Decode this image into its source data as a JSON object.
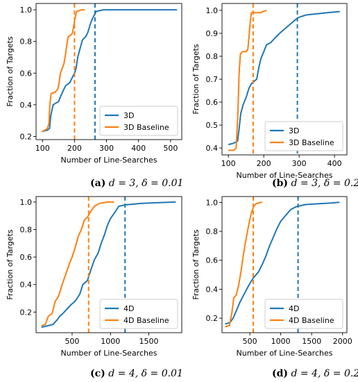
{
  "chart_data": [
    {
      "type": "line",
      "caption_letter": "(a)",
      "caption_rest": "d = 3, δ = 0.01",
      "xlabel": "Number of Line-Searches",
      "ylabel": "Fraction of Targets",
      "xlim": [
        80,
        535
      ],
      "ylim": [
        0.18,
        1.04
      ],
      "xticks": [
        100,
        200,
        300,
        400,
        500
      ],
      "yticks": [
        0.2,
        0.4,
        0.6,
        0.8,
        1.0
      ],
      "ytick_labels": [
        "0.2",
        "0.4",
        "0.6",
        "0.8",
        "1.0"
      ],
      "legend_position": "bottom-right",
      "series": [
        {
          "name": "3D",
          "color": "#1f77b4",
          "points": [
            [
              98,
              0.23
            ],
            [
              115,
              0.24
            ],
            [
              122,
              0.25
            ],
            [
              126,
              0.33
            ],
            [
              133,
              0.4
            ],
            [
              150,
              0.42
            ],
            [
              156,
              0.45
            ],
            [
              165,
              0.49
            ],
            [
              172,
              0.52
            ],
            [
              185,
              0.54
            ],
            [
              195,
              0.58
            ],
            [
              200,
              0.6
            ],
            [
              205,
              0.63
            ],
            [
              210,
              0.7
            ],
            [
              218,
              0.76
            ],
            [
              225,
              0.81
            ],
            [
              235,
              0.83
            ],
            [
              242,
              0.86
            ],
            [
              248,
              0.9
            ],
            [
              253,
              0.93
            ],
            [
              260,
              0.96
            ],
            [
              268,
              0.99
            ],
            [
              290,
              1.0
            ],
            [
              330,
              1.0
            ],
            [
              520,
              1.0
            ]
          ],
          "marker_x": 264
        },
        {
          "name": "3D Baseline",
          "color": "#ff7f0e",
          "points": [
            [
              98,
              0.23
            ],
            [
              108,
              0.24
            ],
            [
              115,
              0.25
            ],
            [
              120,
              0.28
            ],
            [
              123,
              0.4
            ],
            [
              127,
              0.47
            ],
            [
              140,
              0.48
            ],
            [
              148,
              0.5
            ],
            [
              152,
              0.54
            ],
            [
              156,
              0.6
            ],
            [
              160,
              0.62
            ],
            [
              167,
              0.66
            ],
            [
              172,
              0.72
            ],
            [
              176,
              0.78
            ],
            [
              180,
              0.83
            ],
            [
              188,
              0.84
            ],
            [
              193,
              0.85
            ],
            [
              197,
              0.89
            ],
            [
              200,
              0.93
            ],
            [
              203,
              0.96
            ],
            [
              207,
              0.99
            ],
            [
              222,
              1.0
            ],
            [
              232,
              1.0
            ]
          ],
          "marker_x": 200
        }
      ]
    },
    {
      "type": "line",
      "caption_letter": "(b)",
      "caption_rest": "d = 3, δ = 0.2",
      "xlabel": "Number of Line-Searches",
      "ylabel": "Fraction of Targets",
      "xlim": [
        82,
        435
      ],
      "ylim": [
        0.37,
        1.03
      ],
      "xticks": [
        100,
        200,
        300,
        400
      ],
      "yticks": [
        0.4,
        0.5,
        0.6,
        0.7,
        0.8,
        0.9,
        1.0
      ],
      "ytick_labels": [
        "0.4",
        "0.5",
        "0.6",
        "0.7",
        "0.8",
        "0.9",
        "1.0"
      ],
      "legend_position": "bottom-right",
      "series": [
        {
          "name": "3D",
          "color": "#1f77b4",
          "points": [
            [
              100,
              0.415
            ],
            [
              113,
              0.42
            ],
            [
              120,
              0.425
            ],
            [
              126,
              0.43
            ],
            [
              130,
              0.48
            ],
            [
              135,
              0.55
            ],
            [
              142,
              0.59
            ],
            [
              150,
              0.62
            ],
            [
              158,
              0.66
            ],
            [
              165,
              0.68
            ],
            [
              172,
              0.69
            ],
            [
              180,
              0.7
            ],
            [
              186,
              0.75
            ],
            [
              192,
              0.79
            ],
            [
              200,
              0.82
            ],
            [
              208,
              0.85
            ],
            [
              220,
              0.86
            ],
            [
              232,
              0.88
            ],
            [
              245,
              0.9
            ],
            [
              260,
              0.92
            ],
            [
              275,
              0.94
            ],
            [
              290,
              0.96
            ],
            [
              300,
              0.97
            ],
            [
              320,
              0.98
            ],
            [
              350,
              0.985
            ],
            [
              380,
              0.99
            ],
            [
              415,
              0.995
            ]
          ],
          "marker_x": 295
        },
        {
          "name": "3D Baseline",
          "color": "#ff7f0e",
          "points": [
            [
              100,
              0.39
            ],
            [
              115,
              0.39
            ],
            [
              122,
              0.4
            ],
            [
              127,
              0.55
            ],
            [
              130,
              0.72
            ],
            [
              134,
              0.81
            ],
            [
              140,
              0.82
            ],
            [
              150,
              0.82
            ],
            [
              155,
              0.83
            ],
            [
              158,
              0.88
            ],
            [
              160,
              0.92
            ],
            [
              162,
              0.95
            ],
            [
              165,
              0.99
            ],
            [
              180,
              0.99
            ],
            [
              192,
              0.99
            ],
            [
              198,
              0.995
            ],
            [
              208,
              1.0
            ]
          ],
          "marker_x": 170
        }
      ]
    },
    {
      "type": "line",
      "caption_letter": "(c)",
      "caption_rest": "d = 4, δ = 0.01",
      "xlabel": "Number of Line-Searches",
      "ylabel": "Fraction of Targets",
      "xlim": [
        30,
        1930
      ],
      "ylim": [
        0.05,
        1.04
      ],
      "xticks": [
        500,
        1000,
        1500
      ],
      "yticks": [
        0.2,
        0.4,
        0.6,
        0.8,
        1.0
      ],
      "ytick_labels": [
        "0.2",
        "0.4",
        "0.6",
        "0.8",
        "1.0"
      ],
      "legend_position": "bottom-right",
      "series": [
        {
          "name": "4D",
          "color": "#1f77b4",
          "points": [
            [
              100,
              0.09
            ],
            [
              180,
              0.1
            ],
            [
              250,
              0.11
            ],
            [
              300,
              0.14
            ],
            [
              340,
              0.17
            ],
            [
              380,
              0.19
            ],
            [
              430,
              0.22
            ],
            [
              480,
              0.25
            ],
            [
              540,
              0.28
            ],
            [
              600,
              0.33
            ],
            [
              640,
              0.4
            ],
            [
              700,
              0.43
            ],
            [
              740,
              0.5
            ],
            [
              790,
              0.58
            ],
            [
              840,
              0.63
            ],
            [
              880,
              0.7
            ],
            [
              920,
              0.76
            ],
            [
              960,
              0.83
            ],
            [
              1000,
              0.88
            ],
            [
              1050,
              0.92
            ],
            [
              1110,
              0.97
            ],
            [
              1200,
              0.98
            ],
            [
              1400,
              0.99
            ],
            [
              1600,
              0.995
            ],
            [
              1850,
              1.0
            ]
          ],
          "marker_x": 1190
        },
        {
          "name": "4D Baseline",
          "color": "#ff7f0e",
          "points": [
            [
              100,
              0.1
            ],
            [
              150,
              0.11
            ],
            [
              190,
              0.17
            ],
            [
              240,
              0.19
            ],
            [
              280,
              0.28
            ],
            [
              320,
              0.31
            ],
            [
              370,
              0.4
            ],
            [
              420,
              0.48
            ],
            [
              470,
              0.56
            ],
            [
              500,
              0.6
            ],
            [
              540,
              0.67
            ],
            [
              580,
              0.75
            ],
            [
              620,
              0.8
            ],
            [
              660,
              0.87
            ],
            [
              700,
              0.89
            ],
            [
              740,
              0.93
            ],
            [
              790,
              0.97
            ],
            [
              860,
              0.99
            ],
            [
              950,
              1.0
            ],
            [
              1050,
              1.0
            ]
          ],
          "marker_x": 715
        }
      ]
    },
    {
      "type": "line",
      "caption_letter": "(d)",
      "caption_rest": "d = 4, δ = 0.2",
      "xlabel": "Number of Line-Searches",
      "ylabel": "Fraction of Targets",
      "xlim": [
        50,
        2070
      ],
      "ylim": [
        0.1,
        1.04
      ],
      "xticks": [
        500,
        1000,
        1500,
        2000
      ],
      "yticks": [
        0.2,
        0.4,
        0.6,
        0.8,
        1.0
      ],
      "ytick_labels": [
        "0.2",
        "0.4",
        "0.6",
        "0.8",
        "1.0"
      ],
      "legend_position": "bottom-right",
      "series": [
        {
          "name": "4D",
          "color": "#1f77b4",
          "points": [
            [
              100,
              0.16
            ],
            [
              180,
              0.17
            ],
            [
              230,
              0.2
            ],
            [
              280,
              0.25
            ],
            [
              340,
              0.31
            ],
            [
              400,
              0.36
            ],
            [
              450,
              0.4
            ],
            [
              500,
              0.44
            ],
            [
              560,
              0.48
            ],
            [
              640,
              0.52
            ],
            [
              700,
              0.57
            ],
            [
              760,
              0.63
            ],
            [
              820,
              0.7
            ],
            [
              880,
              0.76
            ],
            [
              940,
              0.82
            ],
            [
              1000,
              0.87
            ],
            [
              1080,
              0.91
            ],
            [
              1160,
              0.95
            ],
            [
              1250,
              0.97
            ],
            [
              1400,
              0.985
            ],
            [
              1600,
              0.99
            ],
            [
              1800,
              0.995
            ],
            [
              1950,
              1.0
            ]
          ],
          "marker_x": 1280
        },
        {
          "name": "4D Baseline",
          "color": "#ff7f0e",
          "points": [
            [
              100,
              0.14
            ],
            [
              170,
              0.15
            ],
            [
              210,
              0.24
            ],
            [
              240,
              0.34
            ],
            [
              280,
              0.36
            ],
            [
              320,
              0.43
            ],
            [
              360,
              0.53
            ],
            [
              400,
              0.65
            ],
            [
              440,
              0.75
            ],
            [
              480,
              0.84
            ],
            [
              520,
              0.92
            ],
            [
              560,
              0.97
            ],
            [
              600,
              0.99
            ],
            [
              680,
              1.0
            ],
            [
              700,
              1.0
            ]
          ],
          "marker_x": 555
        }
      ]
    }
  ]
}
